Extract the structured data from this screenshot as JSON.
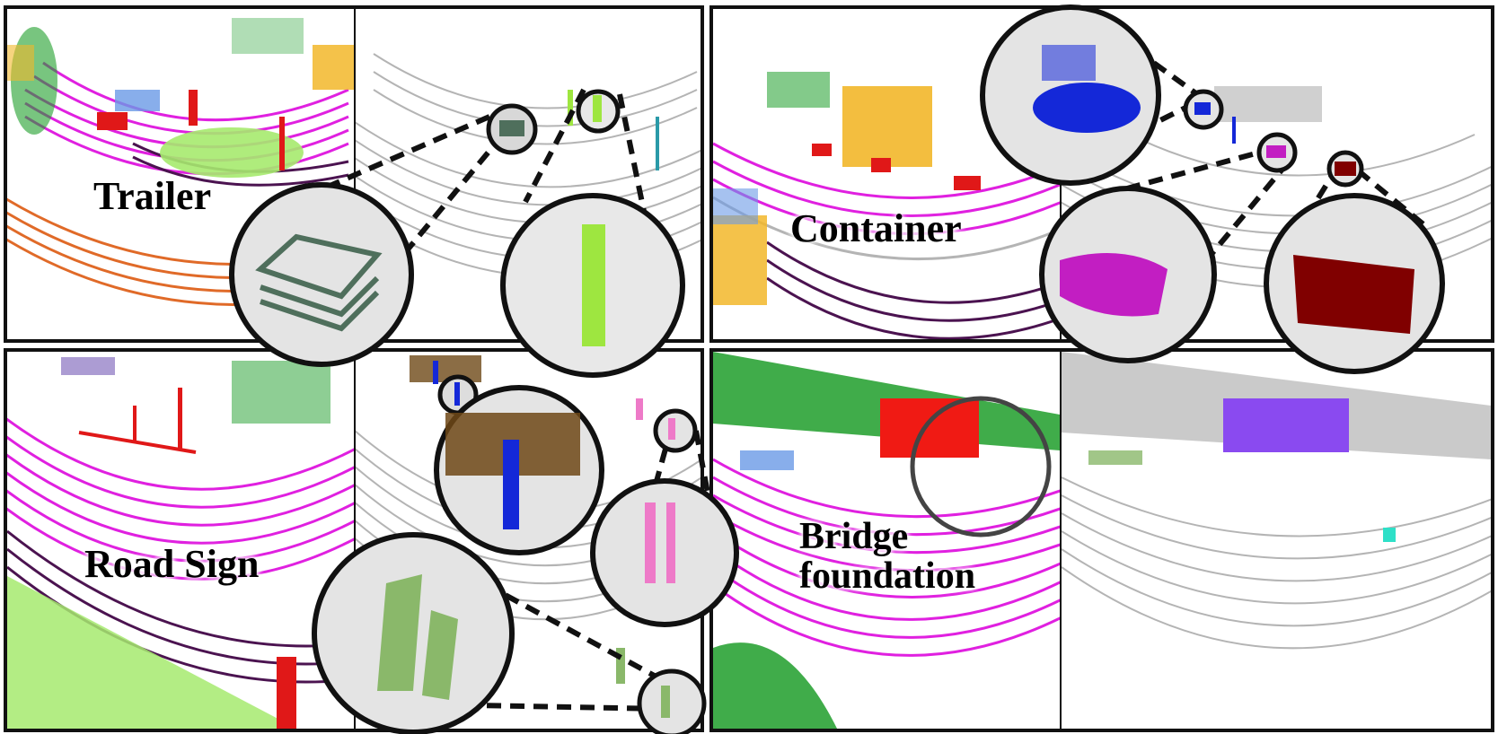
{
  "panels": {
    "trailer": {
      "label": "Trailer"
    },
    "container": {
      "label": "Container"
    },
    "road_sign": {
      "label": "Road Sign"
    },
    "bridge": {
      "label_line1": "Bridge",
      "label_line2": "foundation"
    }
  },
  "class_colors": {
    "road": "#e020e0",
    "sidewalk": "#4b1350",
    "building": "#f2b72a",
    "vegetation": "#1e9e2a",
    "terrain": "#a6ea6e",
    "fence": "#f07a2c",
    "car": "#6a9ae6",
    "unlabeled": "#b4b4b4",
    "trailer": "#4f6f5c",
    "trailer_pole": "#9ee640",
    "container_blue": "#1428d8",
    "container_magenta": "#c21ec2",
    "container_darkred": "#800000",
    "road_sign_brown": "#6e4816",
    "road_sign_pink": "#ee7ac8",
    "road_sign_green": "#8ab86a",
    "bridge_red": "#f01a14",
    "bridge_purple": "#8a4af0"
  }
}
